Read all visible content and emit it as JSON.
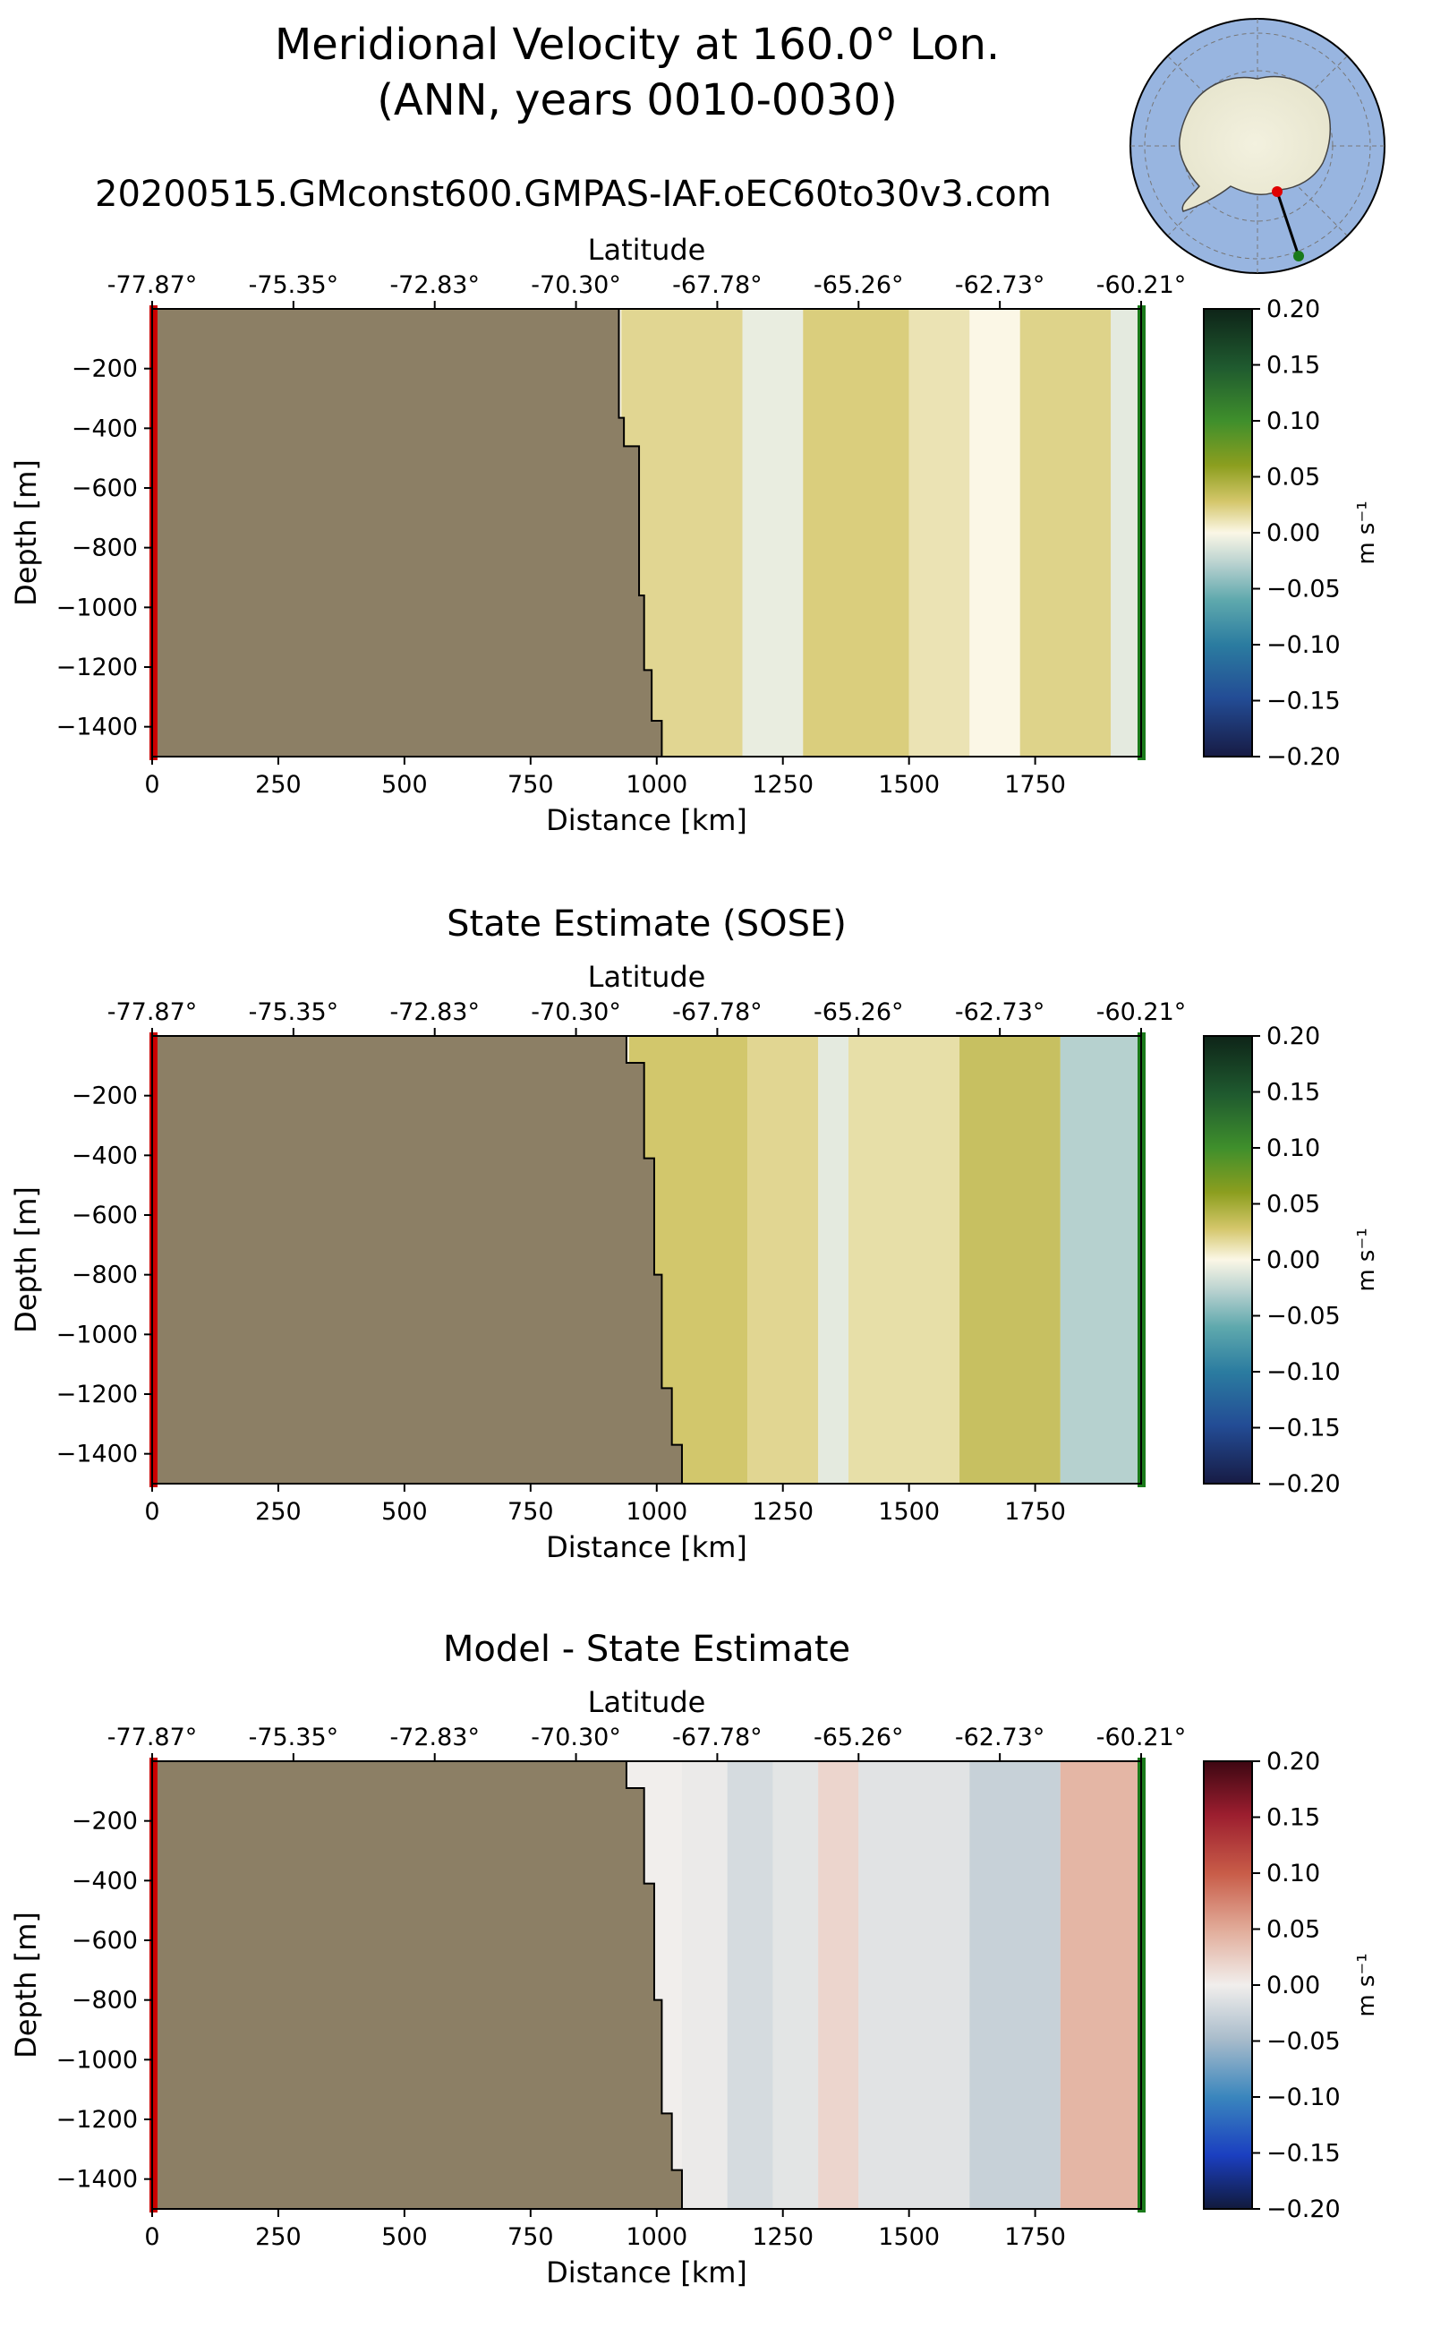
{
  "figure": {
    "title_line1": "Meridional Velocity at 160.0° Lon.",
    "title_line2": "(ANN, years 0010-0030)",
    "run_name": "20200515.GMconst600.GMPAS-IAF.oEC60to30v3.com"
  },
  "inset_map": {
    "projection": "south-polar stereographic",
    "start_marker_color": "#e00000",
    "end_marker_color": "#1a7a1a"
  },
  "chart_data": [
    {
      "type": "heatmap",
      "title": "",
      "xlabel": "Distance [km]",
      "ylabel": "Depth [m]",
      "top_xlabel": "Latitude",
      "xlim": [
        0,
        1960
      ],
      "ylim": [
        -1500,
        0
      ],
      "x_ticks": [
        0,
        250,
        500,
        750,
        1000,
        1250,
        1500,
        1750
      ],
      "y_ticks": [
        -200,
        -400,
        -600,
        -800,
        -1000,
        -1200,
        -1400
      ],
      "lat_ticks": [
        "-77.87°",
        "-75.35°",
        "-72.83°",
        "-70.30°",
        "-67.78°",
        "-65.26°",
        "-62.73°",
        "-60.21°"
      ],
      "colorbar": {
        "label": "m s⁻¹",
        "cmap": "ocean-velocity (teal-white-olive)",
        "vmin": -0.2,
        "vmax": 0.2,
        "ticks": [
          "0.20",
          "0.15",
          "0.10",
          "0.05",
          "0.00",
          "−0.05",
          "−0.10",
          "−0.15",
          "−0.20"
        ]
      },
      "bathymetry_km_depth": [
        [
          925,
          0
        ],
        [
          925,
          -365
        ],
        [
          935,
          -365
        ],
        [
          935,
          -460
        ],
        [
          965,
          -460
        ],
        [
          965,
          -960
        ],
        [
          975,
          -960
        ],
        [
          975,
          -1210
        ],
        [
          990,
          -1210
        ],
        [
          990,
          -1380
        ],
        [
          1010,
          -1380
        ],
        [
          1010,
          -1500
        ]
      ],
      "velocity_columns": [
        {
          "x": [
            930,
            1170
          ],
          "v": 0.02
        },
        {
          "x": [
            1170,
            1290
          ],
          "v": -0.008
        },
        {
          "x": [
            1290,
            1500
          ],
          "v": 0.025
        },
        {
          "x": [
            1500,
            1620
          ],
          "v": 0.012
        },
        {
          "x": [
            1620,
            1720
          ],
          "v": 0.0
        },
        {
          "x": [
            1720,
            1900
          ],
          "v": 0.022
        },
        {
          "x": [
            1900,
            1960
          ],
          "v": -0.01
        }
      ]
    },
    {
      "type": "heatmap",
      "title": "State Estimate (SOSE)",
      "xlabel": "Distance [km]",
      "ylabel": "Depth [m]",
      "top_xlabel": "Latitude",
      "xlim": [
        0,
        1960
      ],
      "ylim": [
        -1500,
        0
      ],
      "x_ticks": [
        0,
        250,
        500,
        750,
        1000,
        1250,
        1500,
        1750
      ],
      "y_ticks": [
        -200,
        -400,
        -600,
        -800,
        -1000,
        -1200,
        -1400
      ],
      "lat_ticks": [
        "-77.87°",
        "-75.35°",
        "-72.83°",
        "-70.30°",
        "-67.78°",
        "-65.26°",
        "-62.73°",
        "-60.21°"
      ],
      "colorbar": {
        "label": "m s⁻¹",
        "cmap": "ocean-velocity (teal-white-olive)",
        "vmin": -0.2,
        "vmax": 0.2,
        "ticks": [
          "0.20",
          "0.15",
          "0.10",
          "0.05",
          "0.00",
          "−0.05",
          "−0.10",
          "−0.15",
          "−0.20"
        ]
      },
      "bathymetry_km_depth": [
        [
          940,
          0
        ],
        [
          940,
          -90
        ],
        [
          975,
          -90
        ],
        [
          975,
          -410
        ],
        [
          995,
          -410
        ],
        [
          995,
          -800
        ],
        [
          1010,
          -800
        ],
        [
          1010,
          -1180
        ],
        [
          1030,
          -1180
        ],
        [
          1030,
          -1370
        ],
        [
          1050,
          -1370
        ],
        [
          1050,
          -1500
        ]
      ],
      "velocity_columns": [
        {
          "x": [
            945,
            1180
          ],
          "v": 0.03
        },
        {
          "x": [
            1180,
            1320
          ],
          "v": 0.02
        },
        {
          "x": [
            1320,
            1380
          ],
          "v": -0.01
        },
        {
          "x": [
            1380,
            1600
          ],
          "v": 0.015
        },
        {
          "x": [
            1600,
            1800
          ],
          "v": 0.035
        },
        {
          "x": [
            1800,
            1960
          ],
          "v": -0.03
        }
      ]
    },
    {
      "type": "heatmap",
      "title": "Model - State Estimate",
      "xlabel": "Distance [km]",
      "ylabel": "Depth [m]",
      "top_xlabel": "Latitude",
      "xlim": [
        0,
        1960
      ],
      "ylim": [
        -1500,
        0
      ],
      "x_ticks": [
        0,
        250,
        500,
        750,
        1000,
        1250,
        1500,
        1750
      ],
      "y_ticks": [
        -200,
        -400,
        -600,
        -800,
        -1000,
        -1200,
        -1400
      ],
      "lat_ticks": [
        "-77.87°",
        "-75.35°",
        "-72.83°",
        "-70.30°",
        "-67.78°",
        "-65.26°",
        "-62.73°",
        "-60.21°"
      ],
      "colorbar": {
        "label": "m s⁻¹",
        "cmap": "balance (blue-white-red)",
        "vmin": -0.2,
        "vmax": 0.2,
        "ticks": [
          "0.20",
          "0.15",
          "0.10",
          "0.05",
          "0.00",
          "−0.05",
          "−0.10",
          "−0.15",
          "−0.20"
        ]
      },
      "bathymetry_km_depth": [
        [
          940,
          0
        ],
        [
          940,
          -90
        ],
        [
          975,
          -90
        ],
        [
          975,
          -410
        ],
        [
          995,
          -410
        ],
        [
          995,
          -800
        ],
        [
          1010,
          -800
        ],
        [
          1010,
          -1180
        ],
        [
          1030,
          -1180
        ],
        [
          1030,
          -1370
        ],
        [
          1050,
          -1370
        ],
        [
          1050,
          -1500
        ]
      ],
      "velocity_columns": [
        {
          "x": [
            1050,
            1140
          ],
          "v": -0.005
        },
        {
          "x": [
            1140,
            1230
          ],
          "v": -0.02
        },
        {
          "x": [
            1230,
            1320
          ],
          "v": -0.01
        },
        {
          "x": [
            1320,
            1400
          ],
          "v": 0.02
        },
        {
          "x": [
            1400,
            1620
          ],
          "v": -0.012
        },
        {
          "x": [
            1620,
            1800
          ],
          "v": -0.03
        },
        {
          "x": [
            1800,
            1960
          ],
          "v": 0.045
        }
      ]
    }
  ]
}
